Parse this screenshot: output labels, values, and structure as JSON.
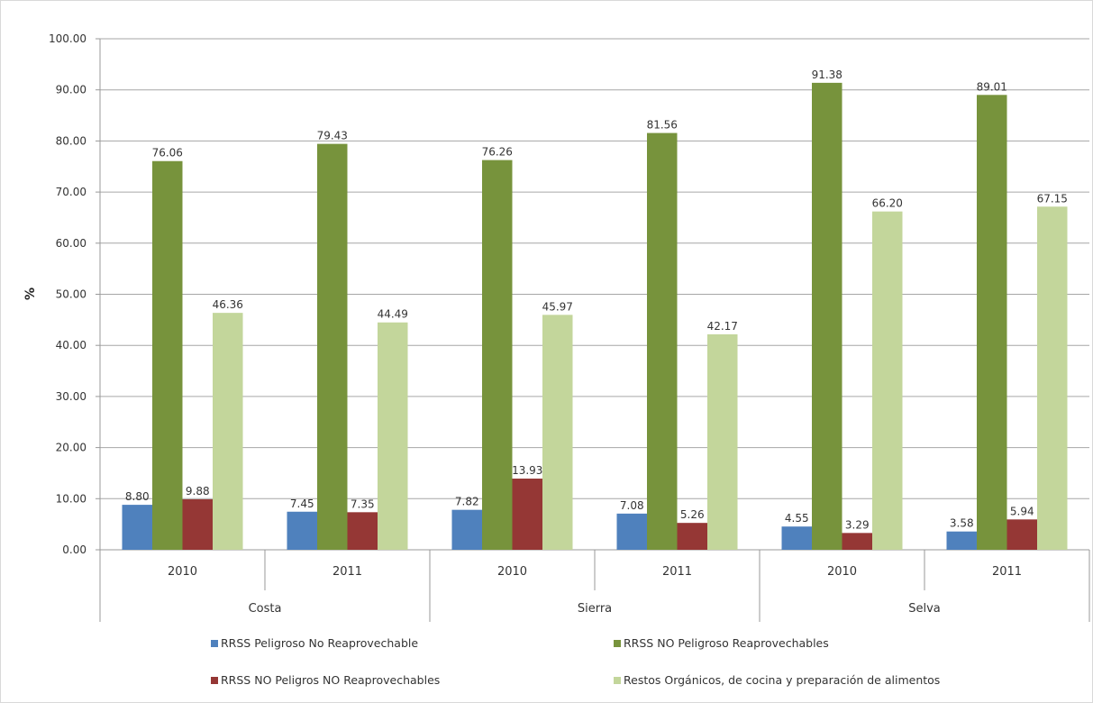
{
  "chart_data": {
    "type": "bar",
    "title": "",
    "ylabel": "%",
    "xlabel": "",
    "ylim": [
      0,
      100
    ],
    "y_ticks": [
      "0.00",
      "10.00",
      "20.00",
      "30.00",
      "40.00",
      "50.00",
      "60.00",
      "70.00",
      "80.00",
      "90.00",
      "100.00"
    ],
    "grid": true,
    "legend_position": "bottom",
    "groups": [
      "Costa",
      "Sierra",
      "Selva"
    ],
    "categories": [
      "2010",
      "2011",
      "2010",
      "2011",
      "2010",
      "2011"
    ],
    "series": [
      {
        "name": "RRSS Peligroso No Reaprovechable",
        "color": "#4f81bd",
        "values": [
          8.8,
          7.45,
          7.82,
          7.08,
          4.55,
          3.58
        ],
        "labels": [
          "8.80",
          "7.45",
          "7.82",
          "7.08",
          "4.55",
          "3.58"
        ]
      },
      {
        "name": "RRSS NO Peligroso Reaprovechables",
        "color": "#77933c",
        "values": [
          76.06,
          79.43,
          76.26,
          81.56,
          91.38,
          89.01
        ],
        "labels": [
          "76.06",
          "79.43",
          "76.26",
          "81.56",
          "91.38",
          "89.01"
        ]
      },
      {
        "name": "RRSS NO Peligros NO Reaprovechables",
        "color": "#953735",
        "values": [
          9.88,
          7.35,
          13.93,
          5.26,
          3.29,
          5.94
        ],
        "labels": [
          "9.88",
          "7.35",
          "13.93",
          "5.26",
          "3.29",
          "5.94"
        ]
      },
      {
        "name": "Restos Orgánicos, de cocina y preparación de alimentos",
        "color": "#c3d69b",
        "values": [
          46.36,
          44.49,
          45.97,
          42.17,
          66.2,
          67.15
        ],
        "labels": [
          "46.36",
          "44.49",
          "45.97",
          "42.17",
          "66.20",
          "67.15"
        ]
      }
    ]
  }
}
